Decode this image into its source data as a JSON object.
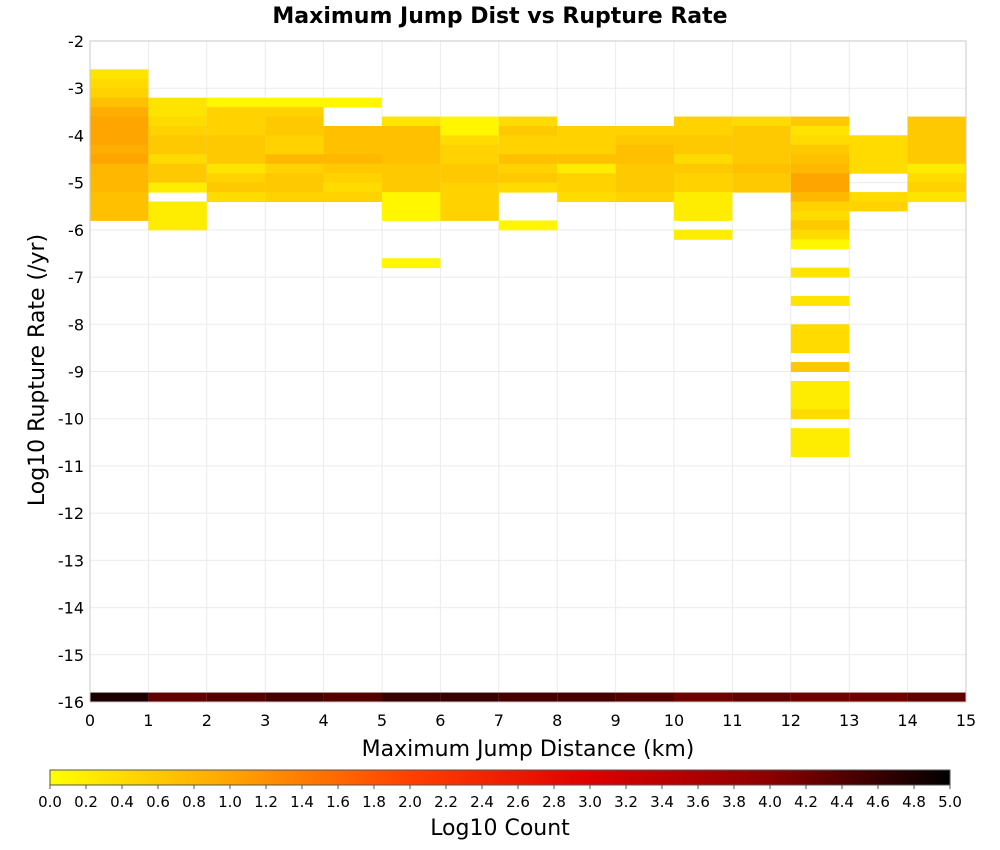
{
  "chart_data": {
    "type": "heatmap",
    "title": "Maximum Jump Dist vs Rupture Rate",
    "xlabel": "Maximum Jump Distance (km)",
    "ylabel": "Log10 Rupture Rate (/yr)",
    "xlim": [
      0,
      15
    ],
    "ylim": [
      -16,
      -2
    ],
    "xticks": [
      "0",
      "1",
      "2",
      "3",
      "4",
      "5",
      "6",
      "7",
      "8",
      "9",
      "10",
      "11",
      "12",
      "13",
      "14",
      "15"
    ],
    "yticks": [
      "-2",
      "-3",
      "-4",
      "-5",
      "-6",
      "-7",
      "-8",
      "-9",
      "-10",
      "-11",
      "-12",
      "-13",
      "-14",
      "-15",
      "-16"
    ],
    "grid": true,
    "bin_width_x": 1,
    "bin_height_y": 0.2,
    "colorbar": {
      "label": "Log10 Count",
      "min": 0.0,
      "max": 5.0,
      "ticks": [
        "0.0",
        "0.2",
        "0.4",
        "0.6",
        "0.8",
        "1.0",
        "1.2",
        "1.4",
        "1.6",
        "1.8",
        "2.0",
        "2.2",
        "2.4",
        "2.6",
        "2.8",
        "3.0",
        "3.2",
        "3.4",
        "3.6",
        "3.8",
        "4.0",
        "4.2",
        "4.4",
        "4.6",
        "4.8",
        "5.0"
      ],
      "colors": [
        "#ffff00",
        "#ffa500",
        "#ff4000",
        "#dd0000",
        "#8b0000",
        "#000000"
      ]
    },
    "columns": [
      {
        "x": [
          0,
          1
        ],
        "cells": [
          [
            -2.8,
            0.3
          ],
          [
            -3.0,
            0.4
          ],
          [
            -3.2,
            0.5
          ],
          [
            -3.4,
            0.7
          ],
          [
            -3.6,
            0.9
          ],
          [
            -3.8,
            1.0
          ],
          [
            -4.0,
            1.0
          ],
          [
            -4.2,
            1.0
          ],
          [
            -4.4,
            0.9
          ],
          [
            -4.6,
            1.0
          ],
          [
            -4.8,
            0.8
          ],
          [
            -5.0,
            0.8
          ],
          [
            -5.2,
            0.8
          ],
          [
            -5.4,
            0.7
          ],
          [
            -5.6,
            0.7
          ],
          [
            -5.8,
            0.7
          ],
          [
            -16.0,
            4.8
          ]
        ]
      },
      {
        "x": [
          1,
          2
        ],
        "cells": [
          [
            -3.4,
            0.3
          ],
          [
            -3.6,
            0.3
          ],
          [
            -3.8,
            0.4
          ],
          [
            -4.0,
            0.5
          ],
          [
            -4.2,
            0.6
          ],
          [
            -4.4,
            0.6
          ],
          [
            -4.6,
            0.4
          ],
          [
            -4.8,
            0.6
          ],
          [
            -5.0,
            0.6
          ],
          [
            -5.2,
            0.2
          ],
          [
            -5.6,
            0.2
          ],
          [
            -5.8,
            0.2
          ],
          [
            -6.0,
            0.2
          ],
          [
            -16.0,
            4.3
          ]
        ]
      },
      {
        "x": [
          2,
          3
        ],
        "cells": [
          [
            -3.4,
            0.1
          ],
          [
            -3.6,
            0.5
          ],
          [
            -3.8,
            0.5
          ],
          [
            -4.0,
            0.5
          ],
          [
            -4.2,
            0.6
          ],
          [
            -4.4,
            0.6
          ],
          [
            -4.6,
            0.6
          ],
          [
            -4.8,
            0.3
          ],
          [
            -5.0,
            0.5
          ],
          [
            -5.2,
            0.6
          ],
          [
            -5.4,
            0.4
          ],
          [
            -16.0,
            4.4
          ]
        ]
      },
      {
        "x": [
          3,
          4
        ],
        "cells": [
          [
            -3.4,
            0.1
          ],
          [
            -3.6,
            0.5
          ],
          [
            -3.8,
            0.6
          ],
          [
            -4.0,
            0.6
          ],
          [
            -4.2,
            0.5
          ],
          [
            -4.4,
            0.5
          ],
          [
            -4.6,
            0.8
          ],
          [
            -4.8,
            0.5
          ],
          [
            -5.0,
            0.6
          ],
          [
            -5.2,
            0.6
          ],
          [
            -5.4,
            0.5
          ],
          [
            -16.0,
            4.5
          ]
        ]
      },
      {
        "x": [
          4,
          5
        ],
        "cells": [
          [
            -3.4,
            0.1
          ],
          [
            -4.0,
            0.7
          ],
          [
            -4.2,
            0.7
          ],
          [
            -4.4,
            0.7
          ],
          [
            -4.6,
            0.8
          ],
          [
            -4.8,
            0.6
          ],
          [
            -5.0,
            0.5
          ],
          [
            -5.2,
            0.4
          ],
          [
            -5.4,
            0.5
          ],
          [
            -16.0,
            4.4
          ]
        ]
      },
      {
        "x": [
          5,
          6
        ],
        "cells": [
          [
            -3.8,
            0.3
          ],
          [
            -4.0,
            0.7
          ],
          [
            -4.2,
            0.7
          ],
          [
            -4.4,
            0.7
          ],
          [
            -4.6,
            0.7
          ],
          [
            -4.8,
            0.6
          ],
          [
            -5.0,
            0.6
          ],
          [
            -5.2,
            0.6
          ],
          [
            -5.4,
            0.1
          ],
          [
            -5.6,
            0.1
          ],
          [
            -5.8,
            0.1
          ],
          [
            -6.8,
            0.1
          ],
          [
            -16.0,
            4.6
          ]
        ]
      },
      {
        "x": [
          6,
          7
        ],
        "cells": [
          [
            -3.8,
            0.1
          ],
          [
            -4.0,
            0.1
          ],
          [
            -4.2,
            0.4
          ],
          [
            -4.4,
            0.5
          ],
          [
            -4.6,
            0.5
          ],
          [
            -4.8,
            0.6
          ],
          [
            -5.0,
            0.6
          ],
          [
            -5.2,
            0.5
          ],
          [
            -5.4,
            0.5
          ],
          [
            -5.6,
            0.5
          ],
          [
            -5.8,
            0.5
          ],
          [
            -16.0,
            4.6
          ]
        ]
      },
      {
        "x": [
          7,
          8
        ],
        "cells": [
          [
            -3.8,
            0.4
          ],
          [
            -4.0,
            0.6
          ],
          [
            -4.2,
            0.5
          ],
          [
            -4.4,
            0.5
          ],
          [
            -4.6,
            0.7
          ],
          [
            -4.8,
            0.5
          ],
          [
            -5.0,
            0.6
          ],
          [
            -5.2,
            0.4
          ],
          [
            -6.0,
            0.1
          ],
          [
            -16.0,
            4.5
          ]
        ]
      },
      {
        "x": [
          8,
          9
        ],
        "cells": [
          [
            -4.0,
            0.5
          ],
          [
            -4.2,
            0.5
          ],
          [
            -4.4,
            0.5
          ],
          [
            -4.6,
            0.7
          ],
          [
            -4.8,
            0.2
          ],
          [
            -5.0,
            0.5
          ],
          [
            -5.2,
            0.5
          ],
          [
            -5.4,
            0.4
          ],
          [
            -16.0,
            4.5
          ]
        ]
      },
      {
        "x": [
          9,
          10
        ],
        "cells": [
          [
            -4.0,
            0.5
          ],
          [
            -4.2,
            0.6
          ],
          [
            -4.4,
            0.7
          ],
          [
            -4.6,
            0.7
          ],
          [
            -4.8,
            0.6
          ],
          [
            -5.0,
            0.6
          ],
          [
            -5.2,
            0.6
          ],
          [
            -5.4,
            0.5
          ],
          [
            -16.0,
            4.4
          ]
        ]
      },
      {
        "x": [
          10,
          11
        ],
        "cells": [
          [
            -3.8,
            0.5
          ],
          [
            -4.0,
            0.5
          ],
          [
            -4.2,
            0.6
          ],
          [
            -4.4,
            0.6
          ],
          [
            -4.6,
            0.4
          ],
          [
            -4.8,
            0.6
          ],
          [
            -5.0,
            0.5
          ],
          [
            -5.2,
            0.5
          ],
          [
            -5.4,
            0.2
          ],
          [
            -5.6,
            0.2
          ],
          [
            -5.8,
            0.2
          ],
          [
            -6.2,
            0.2
          ],
          [
            -16.0,
            4.2
          ]
        ]
      },
      {
        "x": [
          11,
          12
        ],
        "cells": [
          [
            -3.8,
            0.4
          ],
          [
            -4.0,
            0.6
          ],
          [
            -4.2,
            0.6
          ],
          [
            -4.4,
            0.6
          ],
          [
            -4.6,
            0.6
          ],
          [
            -4.8,
            0.7
          ],
          [
            -5.0,
            0.6
          ],
          [
            -5.2,
            0.6
          ],
          [
            -16.0,
            4.3
          ]
        ]
      },
      {
        "x": [
          12,
          13
        ],
        "cells": [
          [
            -3.8,
            0.6
          ],
          [
            -4.0,
            0.3
          ],
          [
            -4.2,
            0.4
          ],
          [
            -4.4,
            0.6
          ],
          [
            -4.6,
            0.7
          ],
          [
            -4.8,
            0.8
          ],
          [
            -5.0,
            1.0
          ],
          [
            -5.2,
            1.0
          ],
          [
            -5.4,
            0.8
          ],
          [
            -5.6,
            0.5
          ],
          [
            -5.8,
            0.4
          ],
          [
            -6.0,
            0.6
          ],
          [
            -6.2,
            0.4
          ],
          [
            -6.4,
            0.1
          ],
          [
            -7.0,
            0.3
          ],
          [
            -7.6,
            0.3
          ],
          [
            -8.2,
            0.4
          ],
          [
            -8.4,
            0.4
          ],
          [
            -8.6,
            0.4
          ],
          [
            -9.0,
            0.6
          ],
          [
            -9.4,
            0.2
          ],
          [
            -9.6,
            0.2
          ],
          [
            -9.8,
            0.2
          ],
          [
            -10.0,
            0.4
          ],
          [
            -10.4,
            0.2
          ],
          [
            -10.6,
            0.2
          ],
          [
            -10.8,
            0.2
          ],
          [
            -16.0,
            4.2
          ]
        ]
      },
      {
        "x": [
          13,
          14
        ],
        "cells": [
          [
            -4.2,
            0.4
          ],
          [
            -4.4,
            0.4
          ],
          [
            -4.6,
            0.4
          ],
          [
            -4.8,
            0.4
          ],
          [
            -5.4,
            0.4
          ],
          [
            -5.6,
            0.5
          ],
          [
            -16.0,
            4.2
          ]
        ]
      },
      {
        "x": [
          14,
          15
        ],
        "cells": [
          [
            -3.8,
            0.6
          ],
          [
            -4.0,
            0.6
          ],
          [
            -4.2,
            0.6
          ],
          [
            -4.4,
            0.6
          ],
          [
            -4.6,
            0.6
          ],
          [
            -4.8,
            0.2
          ],
          [
            -5.0,
            0.4
          ],
          [
            -5.2,
            0.5
          ],
          [
            -5.4,
            0.3
          ],
          [
            -16.0,
            4.3
          ]
        ]
      }
    ]
  }
}
